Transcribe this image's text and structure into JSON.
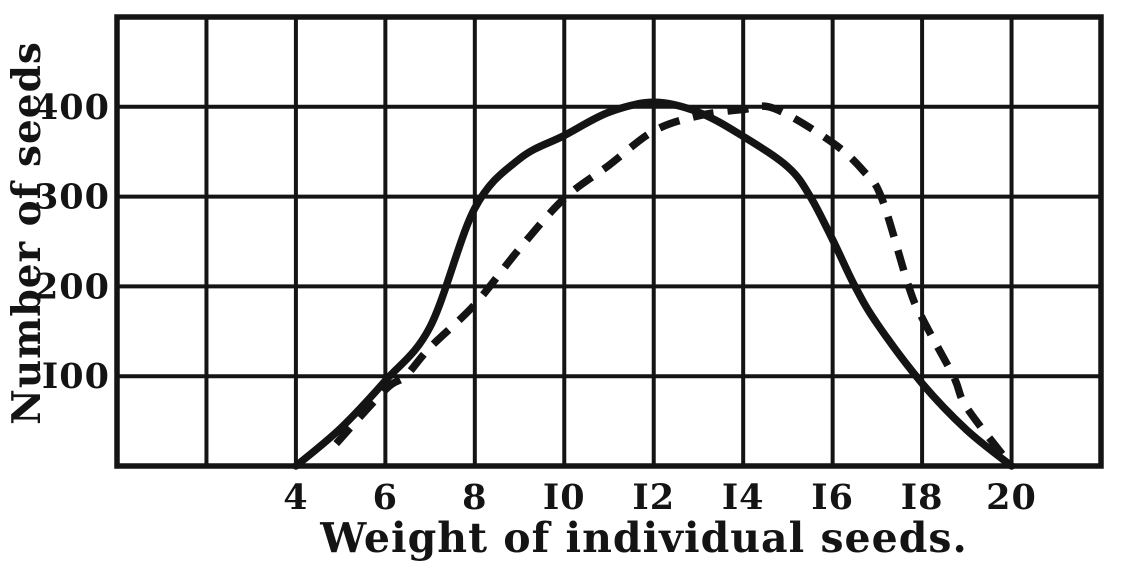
{
  "figure": {
    "ink_color": "#141414",
    "background_color": "#ffffff"
  },
  "chart_data": {
    "type": "line",
    "title": "",
    "xlabel": "Weight of individual seeds.",
    "ylabel": "Number of seeds",
    "grid": true,
    "legend": "none",
    "x_axis": {
      "min": 0,
      "max": 22,
      "grid_step": 2,
      "tick_values": [
        4,
        6,
        8,
        10,
        12,
        14,
        16,
        18,
        20
      ]
    },
    "y_axis": {
      "min": 0,
      "max": 500,
      "grid_step": 100,
      "tick_values": [
        100,
        200,
        300,
        400
      ]
    },
    "series": [
      {
        "name": "solid curve",
        "line_style": "solid",
        "points": [
          [
            4,
            0
          ],
          [
            5,
            42
          ],
          [
            6,
            95
          ],
          [
            7,
            155
          ],
          [
            8,
            287
          ],
          [
            9,
            342
          ],
          [
            10,
            368
          ],
          [
            11,
            394
          ],
          [
            12,
            405
          ],
          [
            13,
            394
          ],
          [
            14,
            367
          ],
          [
            15,
            333
          ],
          [
            15.5,
            300
          ],
          [
            16,
            252
          ],
          [
            16.5,
            200
          ],
          [
            17,
            158
          ],
          [
            18,
            92
          ],
          [
            19,
            40
          ],
          [
            20,
            0
          ]
        ]
      },
      {
        "name": "dashed curve",
        "line_style": "dashed",
        "points": [
          [
            4.9,
            25
          ],
          [
            6,
            85
          ],
          [
            6.45,
            100
          ],
          [
            7,
            132
          ],
          [
            8,
            180
          ],
          [
            9,
            242
          ],
          [
            10,
            298
          ],
          [
            11,
            335
          ],
          [
            12,
            373
          ],
          [
            13,
            390
          ],
          [
            14,
            397
          ],
          [
            14.7,
            398
          ],
          [
            16,
            360
          ],
          [
            16.7,
            328
          ],
          [
            17.1,
            298
          ],
          [
            17.7,
            200
          ],
          [
            18,
            165
          ],
          [
            18.7,
            100
          ],
          [
            19,
            65
          ],
          [
            20,
            0
          ]
        ]
      }
    ]
  }
}
